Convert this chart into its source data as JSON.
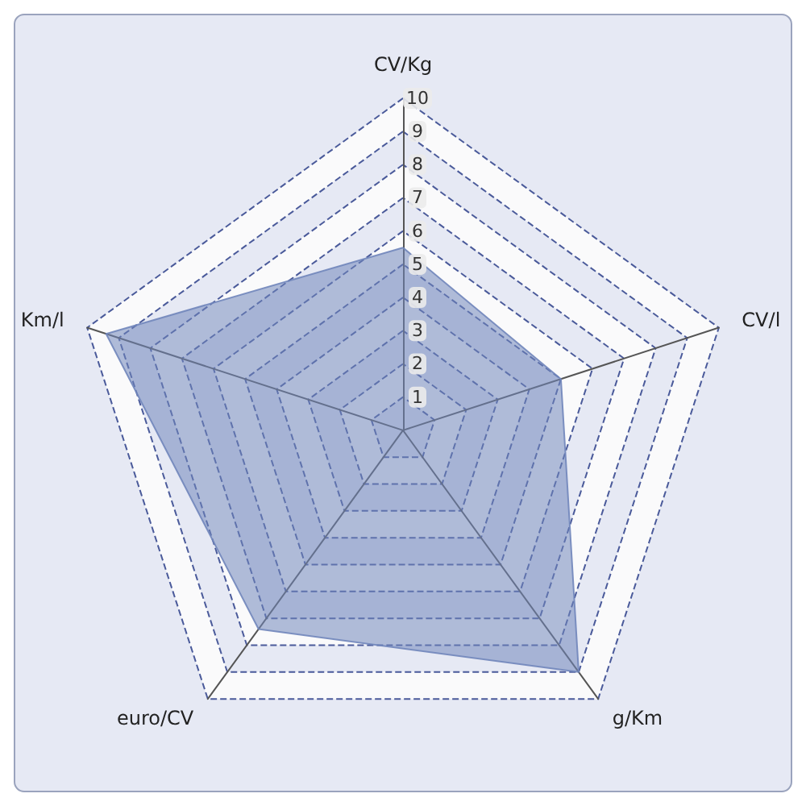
{
  "chart_data": {
    "type": "radar",
    "categories": [
      "CV/Kg",
      "CV/l",
      "g/Km",
      "euro/CV",
      "Km/l"
    ],
    "series": [
      {
        "color": "#7186bb",
        "values": [
          5.5,
          5.0,
          9.0,
          7.4,
          9.4
        ]
      }
    ],
    "ylim": [
      0,
      10
    ],
    "yticks": [
      1,
      2,
      3,
      4,
      5,
      6,
      7,
      8,
      9,
      10
    ],
    "grid": true
  }
}
